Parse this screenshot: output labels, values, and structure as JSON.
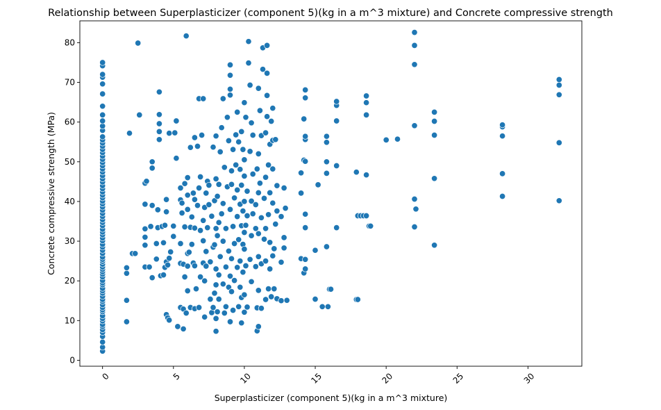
{
  "chart_data": {
    "type": "scatter",
    "title": "Relationship between Superplasticizer (component 5)(kg in a m^3 mixture) and Concrete compressive strength",
    "xlabel": "Superplasticizer (component 5)(kg in a m^3 mixture)",
    "ylabel": "Concrete compressive strength (MPa)",
    "xlim": [
      -1.6,
      33.8
    ],
    "ylim": [
      -1.5,
      85.5
    ],
    "x_ticks": [
      0,
      5,
      10,
      15,
      20,
      25,
      30
    ],
    "y_ticks": [
      0,
      10,
      20,
      30,
      40,
      50,
      60,
      70,
      80
    ],
    "x_tick_rotation": 45,
    "grid": false,
    "marker_color": "#1f77b4",
    "marker_edge_color": "#ffffff",
    "points": [
      [
        0,
        2.3
      ],
      [
        0,
        3.3
      ],
      [
        0,
        4.6
      ],
      [
        0,
        6.0
      ],
      [
        0,
        7.0
      ],
      [
        0,
        7.7
      ],
      [
        0,
        8.5
      ],
      [
        0,
        9.0
      ],
      [
        0,
        9.9
      ],
      [
        0,
        10.5
      ],
      [
        0,
        11.2
      ],
      [
        0,
        12.2
      ],
      [
        0,
        12.7
      ],
      [
        0,
        13.3
      ],
      [
        0,
        14.0
      ],
      [
        0,
        14.8
      ],
      [
        0,
        15.3
      ],
      [
        0,
        16.1
      ],
      [
        0,
        16.9
      ],
      [
        0,
        17.5
      ],
      [
        0,
        18.1
      ],
      [
        0,
        19.0
      ],
      [
        0,
        19.5
      ],
      [
        0,
        20.1
      ],
      [
        0,
        21.0
      ],
      [
        0,
        21.7
      ],
      [
        0,
        22.3
      ],
      [
        0,
        22.9
      ],
      [
        0,
        23.5
      ],
      [
        0,
        24.2
      ],
      [
        0,
        24.9
      ],
      [
        0,
        25.4
      ],
      [
        0,
        26.0
      ],
      [
        0,
        26.9
      ],
      [
        0,
        27.7
      ],
      [
        0,
        28.5
      ],
      [
        0,
        29.2
      ],
      [
        0,
        30.1
      ],
      [
        0,
        30.8
      ],
      [
        0,
        31.6
      ],
      [
        0,
        32.3
      ],
      [
        0,
        33.0
      ],
      [
        0,
        33.9
      ],
      [
        0,
        34.7
      ],
      [
        0,
        35.4
      ],
      [
        0,
        36.2
      ],
      [
        0,
        37.0
      ],
      [
        0,
        37.8
      ],
      [
        0,
        38.6
      ],
      [
        0,
        39.4
      ],
      [
        0,
        40.1
      ],
      [
        0,
        40.9
      ],
      [
        0,
        41.6
      ],
      [
        0,
        42.4
      ],
      [
        0,
        43.2
      ],
      [
        0,
        44.0
      ],
      [
        0,
        44.9
      ],
      [
        0,
        45.7
      ],
      [
        0,
        46.5
      ],
      [
        0,
        47.4
      ],
      [
        0,
        48.2
      ],
      [
        0,
        49.0
      ],
      [
        0,
        49.8
      ],
      [
        0,
        50.6
      ],
      [
        0,
        51.4
      ],
      [
        0,
        52.3
      ],
      [
        0,
        53.1
      ],
      [
        0,
        53.9
      ],
      [
        0,
        54.7
      ],
      [
        0,
        55.5
      ],
      [
        0,
        56.3
      ],
      [
        0,
        57.9
      ],
      [
        0,
        59.0
      ],
      [
        0,
        60.3
      ],
      [
        0,
        61.8
      ],
      [
        0,
        64.0
      ],
      [
        0,
        67.1
      ],
      [
        0,
        69.6
      ],
      [
        0,
        71.3
      ],
      [
        0,
        72.0
      ],
      [
        0,
        74.2
      ],
      [
        0,
        75.0
      ],
      [
        1.7,
        9.7
      ],
      [
        1.7,
        15.1
      ],
      [
        1.7,
        21.9
      ],
      [
        1.7,
        23.3
      ],
      [
        1.9,
        57.2
      ],
      [
        2.1,
        26.9
      ],
      [
        2.3,
        26.9
      ],
      [
        2.5,
        79.9
      ],
      [
        2.6,
        61.8
      ],
      [
        3.0,
        23.5
      ],
      [
        3.0,
        29.0
      ],
      [
        3.0,
        31.0
      ],
      [
        3.0,
        33.1
      ],
      [
        3.0,
        39.3
      ],
      [
        3.0,
        44.6
      ],
      [
        3.1,
        45.1
      ],
      [
        3.3,
        23.5
      ],
      [
        3.4,
        33.7
      ],
      [
        3.5,
        20.8
      ],
      [
        3.5,
        39.0
      ],
      [
        3.5,
        48.4
      ],
      [
        3.5,
        50.0
      ],
      [
        3.8,
        25.5
      ],
      [
        3.8,
        29.4
      ],
      [
        3.9,
        33.4
      ],
      [
        3.9,
        37.9
      ],
      [
        4.0,
        55.6
      ],
      [
        4.0,
        57.6
      ],
      [
        4.0,
        59.6
      ],
      [
        4.0,
        61.9
      ],
      [
        4.0,
        67.6
      ],
      [
        4.1,
        21.3
      ],
      [
        4.2,
        33.7
      ],
      [
        4.3,
        21.5
      ],
      [
        4.3,
        29.6
      ],
      [
        4.4,
        23.4
      ],
      [
        4.4,
        34.0
      ],
      [
        4.5,
        11.5
      ],
      [
        4.5,
        24.8
      ],
      [
        4.5,
        37.4
      ],
      [
        4.5,
        40.5
      ],
      [
        4.6,
        10.7
      ],
      [
        4.6,
        24.0
      ],
      [
        4.7,
        10.1
      ],
      [
        4.7,
        57.2
      ],
      [
        4.7,
        25.7
      ],
      [
        4.8,
        27.3
      ],
      [
        5.0,
        31.2
      ],
      [
        5.0,
        33.8
      ],
      [
        5.1,
        57.3
      ],
      [
        5.2,
        50.9
      ],
      [
        5.2,
        60.3
      ],
      [
        5.3,
        8.5
      ],
      [
        5.5,
        13.3
      ],
      [
        5.5,
        24.4
      ],
      [
        5.5,
        29.4
      ],
      [
        5.5,
        40.4
      ],
      [
        5.5,
        43.4
      ],
      [
        5.6,
        37.1
      ],
      [
        5.6,
        39.6
      ],
      [
        5.7,
        7.9
      ],
      [
        5.7,
        12.9
      ],
      [
        5.7,
        24.2
      ],
      [
        5.8,
        21.0
      ],
      [
        5.8,
        33.6
      ],
      [
        5.8,
        44.5
      ],
      [
        5.9,
        81.7
      ],
      [
        5.9,
        11.9
      ],
      [
        6.0,
        17.5
      ],
      [
        6.0,
        23.7
      ],
      [
        6.0,
        26.9
      ],
      [
        6.0,
        38.0
      ],
      [
        6.0,
        41.6
      ],
      [
        6.0,
        46.0
      ],
      [
        6.1,
        27.2
      ],
      [
        6.2,
        13.3
      ],
      [
        6.2,
        33.5
      ],
      [
        6.2,
        53.6
      ],
      [
        6.3,
        29.2
      ],
      [
        6.3,
        36.1
      ],
      [
        6.4,
        24.5
      ],
      [
        6.4,
        42.1
      ],
      [
        6.5,
        13.0
      ],
      [
        6.5,
        23.8
      ],
      [
        6.5,
        33.3
      ],
      [
        6.5,
        40.5
      ],
      [
        6.5,
        56.1
      ],
      [
        6.6,
        18.0
      ],
      [
        6.7,
        39.0
      ],
      [
        6.7,
        53.9
      ],
      [
        6.8,
        13.3
      ],
      [
        6.8,
        43.4
      ],
      [
        6.8,
        65.9
      ],
      [
        6.9,
        21.0
      ],
      [
        6.9,
        32.7
      ],
      [
        6.9,
        46.2
      ],
      [
        7.0,
        56.7
      ],
      [
        7.1,
        65.9
      ],
      [
        7.1,
        24.5
      ],
      [
        7.1,
        30.1
      ],
      [
        7.1,
        35.2
      ],
      [
        7.2,
        10.9
      ],
      [
        7.2,
        20.0
      ],
      [
        7.2,
        38.5
      ],
      [
        7.3,
        23.7
      ],
      [
        7.3,
        27.4
      ],
      [
        7.3,
        42.1
      ],
      [
        7.4,
        33.4
      ],
      [
        7.4,
        45.1
      ],
      [
        7.5,
        39.2
      ],
      [
        7.5,
        44.1
      ],
      [
        7.6,
        15.4
      ],
      [
        7.6,
        24.8
      ],
      [
        7.7,
        12.0
      ],
      [
        7.7,
        36.3
      ],
      [
        7.8,
        13.3
      ],
      [
        7.8,
        28.5
      ],
      [
        7.8,
        53.7
      ],
      [
        7.9,
        16.9
      ],
      [
        7.9,
        29.1
      ],
      [
        7.9,
        40.2
      ],
      [
        8.0,
        7.3
      ],
      [
        8.0,
        10.5
      ],
      [
        8.0,
        19.0
      ],
      [
        8.0,
        23.0
      ],
      [
        8.0,
        33.2
      ],
      [
        8.0,
        45.7
      ],
      [
        8.0,
        56.5
      ],
      [
        8.1,
        12.2
      ],
      [
        8.1,
        31.4
      ],
      [
        8.1,
        41.3
      ],
      [
        8.2,
        15.4
      ],
      [
        8.2,
        21.5
      ],
      [
        8.2,
        34.7
      ],
      [
        8.2,
        44.3
      ],
      [
        8.3,
        52.5
      ],
      [
        8.3,
        26.1
      ],
      [
        8.4,
        36.9
      ],
      [
        8.4,
        58.6
      ],
      [
        8.5,
        19.2
      ],
      [
        8.5,
        30.0
      ],
      [
        8.5,
        39.5
      ],
      [
        8.5,
        65.9
      ],
      [
        8.6,
        11.9
      ],
      [
        8.6,
        48.6
      ],
      [
        8.7,
        13.5
      ],
      [
        8.7,
        23.5
      ],
      [
        8.7,
        33.2
      ],
      [
        8.8,
        43.7
      ],
      [
        8.8,
        61.2
      ],
      [
        8.9,
        18.4
      ],
      [
        8.9,
        27.5
      ],
      [
        8.9,
        55.3
      ],
      [
        9.0,
        9.7
      ],
      [
        9.0,
        21.2
      ],
      [
        9.0,
        38.0
      ],
      [
        9.0,
        74.4
      ],
      [
        9.0,
        71.8
      ],
      [
        9.0,
        68.3
      ],
      [
        9.0,
        66.8
      ],
      [
        9.1,
        17.3
      ],
      [
        9.1,
        25.6
      ],
      [
        9.1,
        44.3
      ],
      [
        9.1,
        47.7
      ],
      [
        9.2,
        12.6
      ],
      [
        9.2,
        33.7
      ],
      [
        9.2,
        53.1
      ],
      [
        9.3,
        20.1
      ],
      [
        9.3,
        29.4
      ],
      [
        9.3,
        40.9
      ],
      [
        9.4,
        49.2
      ],
      [
        9.4,
        56.8
      ],
      [
        9.5,
        23.4
      ],
      [
        9.5,
        36.2
      ],
      [
        9.5,
        42.9
      ],
      [
        9.5,
        62.5
      ],
      [
        9.6,
        13.5
      ],
      [
        9.6,
        30.4
      ],
      [
        9.6,
        55.0
      ],
      [
        9.7,
        18.4
      ],
      [
        9.7,
        25.0
      ],
      [
        9.7,
        39.3
      ],
      [
        9.7,
        48.1
      ],
      [
        9.8,
        9.4
      ],
      [
        9.8,
        15.8
      ],
      [
        9.8,
        33.9
      ],
      [
        9.8,
        44.1
      ],
      [
        9.8,
        57.6
      ],
      [
        9.9,
        22.2
      ],
      [
        9.9,
        29.2
      ],
      [
        9.9,
        37.6
      ],
      [
        9.9,
        53.1
      ],
      [
        10.0,
        12.1
      ],
      [
        10.0,
        16.5
      ],
      [
        10.0,
        28.0
      ],
      [
        10.0,
        32.2
      ],
      [
        10.0,
        40.0
      ],
      [
        10.0,
        46.4
      ],
      [
        10.0,
        50.5
      ],
      [
        10.0,
        64.9
      ],
      [
        10.1,
        23.8
      ],
      [
        10.1,
        34.0
      ],
      [
        10.1,
        61.2
      ],
      [
        10.2,
        13.4
      ],
      [
        10.2,
        36.4
      ],
      [
        10.2,
        42.6
      ],
      [
        10.3,
        80.3
      ],
      [
        10.3,
        74.9
      ],
      [
        10.4,
        69.3
      ],
      [
        10.4,
        25.4
      ],
      [
        10.4,
        52.6
      ],
      [
        10.5,
        19.8
      ],
      [
        10.5,
        31.4
      ],
      [
        10.5,
        40.1
      ],
      [
        10.5,
        59.8
      ],
      [
        10.6,
        56.7
      ],
      [
        10.6,
        36.9
      ],
      [
        10.6,
        46.9
      ],
      [
        10.8,
        23.6
      ],
      [
        10.8,
        33.2
      ],
      [
        10.8,
        39.2
      ],
      [
        10.9,
        7.4
      ],
      [
        10.9,
        13.2
      ],
      [
        10.9,
        48.2
      ],
      [
        11.0,
        8.5
      ],
      [
        11.0,
        17.6
      ],
      [
        11.0,
        26.1
      ],
      [
        11.0,
        31.9
      ],
      [
        11.0,
        42.2
      ],
      [
        11.0,
        52.0
      ],
      [
        11.0,
        68.5
      ],
      [
        11.1,
        62.9
      ],
      [
        11.1,
        44.6
      ],
      [
        11.2,
        13.1
      ],
      [
        11.2,
        24.3
      ],
      [
        11.2,
        35.9
      ],
      [
        11.2,
        56.6
      ],
      [
        11.3,
        73.3
      ],
      [
        11.3,
        78.7
      ],
      [
        11.4,
        30.5
      ],
      [
        11.4,
        40.8
      ],
      [
        11.5,
        15.3
      ],
      [
        11.5,
        25.0
      ],
      [
        11.5,
        33.2
      ],
      [
        11.5,
        46.1
      ],
      [
        11.5,
        57.3
      ],
      [
        11.6,
        61.4
      ],
      [
        11.6,
        66.7
      ],
      [
        11.6,
        79.3
      ],
      [
        11.6,
        72.3
      ],
      [
        11.7,
        18.0
      ],
      [
        11.7,
        36.7
      ],
      [
        11.7,
        49.2
      ],
      [
        11.8,
        23.0
      ],
      [
        11.8,
        29.7
      ],
      [
        11.8,
        42.2
      ],
      [
        11.8,
        54.4
      ],
      [
        11.9,
        16.0
      ],
      [
        11.9,
        60.2
      ],
      [
        12.0,
        26.3
      ],
      [
        12.0,
        39.6
      ],
      [
        12.0,
        48.2
      ],
      [
        12.0,
        55.4
      ],
      [
        12.0,
        63.5
      ],
      [
        12.1,
        18.0
      ],
      [
        12.1,
        28.1
      ],
      [
        12.2,
        34.3
      ],
      [
        12.2,
        55.6
      ],
      [
        12.3,
        15.5
      ],
      [
        12.3,
        44.0
      ],
      [
        12.3,
        37.6
      ],
      [
        12.6,
        15.0
      ],
      [
        12.6,
        24.7
      ],
      [
        12.6,
        36.2
      ],
      [
        12.8,
        30.9
      ],
      [
        12.8,
        43.4
      ],
      [
        12.8,
        28.3
      ],
      [
        12.9,
        38.3
      ],
      [
        13.0,
        15.1
      ],
      [
        14.0,
        25.6
      ],
      [
        14.0,
        42.1
      ],
      [
        14.0,
        47.2
      ],
      [
        14.2,
        22.0
      ],
      [
        14.2,
        50.4
      ],
      [
        14.2,
        60.8
      ],
      [
        14.3,
        23.0
      ],
      [
        14.3,
        25.4
      ],
      [
        14.3,
        33.4
      ],
      [
        14.3,
        36.8
      ],
      [
        14.3,
        50.1
      ],
      [
        14.3,
        55.6
      ],
      [
        14.3,
        56.4
      ],
      [
        14.3,
        66.1
      ],
      [
        14.3,
        68.1
      ],
      [
        15.0,
        15.4
      ],
      [
        15.0,
        27.7
      ],
      [
        15.2,
        44.2
      ],
      [
        15.5,
        13.5
      ],
      [
        15.8,
        47.1
      ],
      [
        15.8,
        50.0
      ],
      [
        15.8,
        54.9
      ],
      [
        15.8,
        56.4
      ],
      [
        15.8,
        28.6
      ],
      [
        15.9,
        13.5
      ],
      [
        16.0,
        17.9
      ],
      [
        16.1,
        17.9
      ],
      [
        16.5,
        33.4
      ],
      [
        16.5,
        49.0
      ],
      [
        16.5,
        60.3
      ],
      [
        16.5,
        64.2
      ],
      [
        16.5,
        65.2
      ],
      [
        17.9,
        15.3
      ],
      [
        18.0,
        15.3
      ],
      [
        17.9,
        47.4
      ],
      [
        18.0,
        36.4
      ],
      [
        18.2,
        36.4
      ],
      [
        18.4,
        36.4
      ],
      [
        18.6,
        36.4
      ],
      [
        18.6,
        46.7
      ],
      [
        18.6,
        61.8
      ],
      [
        18.6,
        64.9
      ],
      [
        18.6,
        66.6
      ],
      [
        18.8,
        33.8
      ],
      [
        18.9,
        33.8
      ],
      [
        20.0,
        55.5
      ],
      [
        20.8,
        55.7
      ],
      [
        22.0,
        33.6
      ],
      [
        22.0,
        40.6
      ],
      [
        22.0,
        59.1
      ],
      [
        22.0,
        74.5
      ],
      [
        22.0,
        79.3
      ],
      [
        22.0,
        82.6
      ],
      [
        22.1,
        38.1
      ],
      [
        23.4,
        29.0
      ],
      [
        23.4,
        45.8
      ],
      [
        23.4,
        56.7
      ],
      [
        23.4,
        60.2
      ],
      [
        23.4,
        62.5
      ],
      [
        28.2,
        41.3
      ],
      [
        28.2,
        47.0
      ],
      [
        28.2,
        56.5
      ],
      [
        28.2,
        58.8
      ],
      [
        28.2,
        59.3
      ],
      [
        32.2,
        40.2
      ],
      [
        32.2,
        54.8
      ],
      [
        32.2,
        66.9
      ],
      [
        32.2,
        69.3
      ],
      [
        32.2,
        70.7
      ]
    ]
  }
}
